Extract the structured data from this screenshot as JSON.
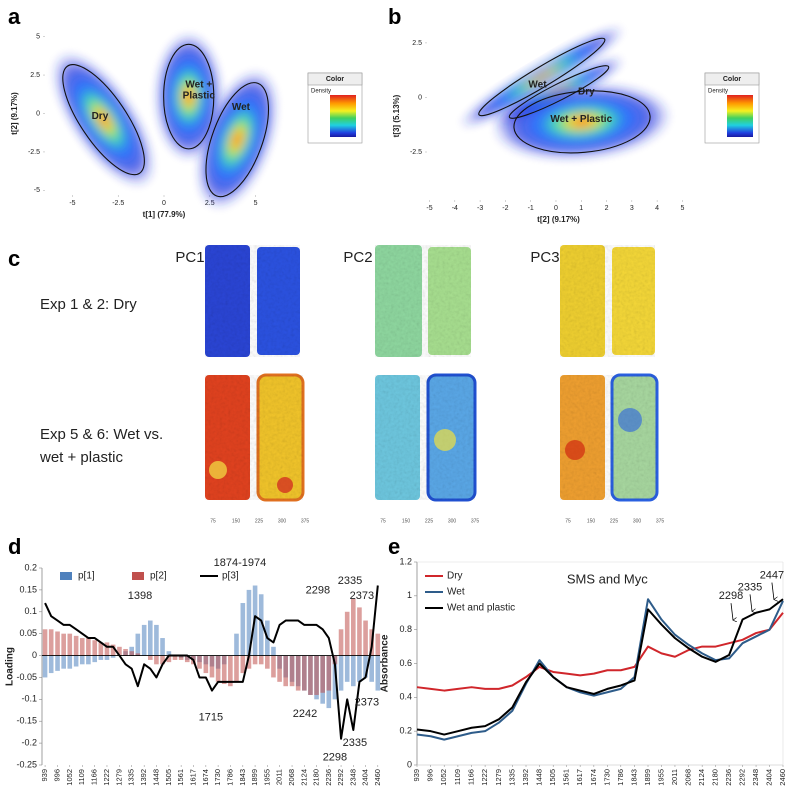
{
  "chart_data": [
    {
      "type": "scatter",
      "panel": "a",
      "xlabel": "t[1] (77.9%)",
      "ylabel": "t[2] (9.17%)",
      "xlim": [
        -6.5,
        6.5
      ],
      "ylim": [
        -5.3,
        5.3
      ],
      "xticks": [
        -5,
        -2.5,
        0,
        2.5,
        5
      ],
      "yticks": [
        -5,
        -2.5,
        0,
        2.5,
        5
      ],
      "ellipses": [
        {
          "label": [
            "Dry"
          ],
          "x": -3.3,
          "y": -0.4,
          "rx": 1.25,
          "ry": 4.2,
          "rotate": -34,
          "text_at": [
            -3.5,
            -0.2
          ]
        },
        {
          "label": [
            "Wet +",
            "Plastic"
          ],
          "x": 1.35,
          "y": 1.1,
          "rx": 1.37,
          "ry": 3.4,
          "rotate": 0,
          "text_at": [
            1.9,
            1.5
          ]
        },
        {
          "label": [
            "Wet"
          ],
          "x": 4.0,
          "y": -1.7,
          "rx": 1.37,
          "ry": 3.9,
          "rotate": 20,
          "text_at": [
            4.2,
            0.4
          ]
        }
      ],
      "colorbar": {
        "title": "Color",
        "label": "Density"
      }
    },
    {
      "type": "scatter",
      "panel": "b",
      "xlabel": "t[2] (9.17%)",
      "ylabel": "t[3] (5.13%)",
      "xlim": [
        -5.1,
        5.3
      ],
      "ylim": [
        -4.7,
        3
      ],
      "xticks": [
        -5,
        -4,
        -3,
        -2,
        -1,
        0,
        1,
        2,
        3,
        4,
        5
      ],
      "yticks": [
        -2.5,
        0,
        2.5
      ],
      "ellipses": [
        {
          "label": [
            "Wet"
          ],
          "x": -0.56,
          "y": 0.94,
          "rx": 2.9,
          "ry": 0.45,
          "rotate": -31,
          "text_at": [
            -0.73,
            0.57
          ]
        },
        {
          "label": [
            "Dry"
          ],
          "x": 0.12,
          "y": 0.25,
          "rx": 2.2,
          "ry": 0.37,
          "rotate": -27,
          "text_at": [
            1.2,
            0.25
          ]
        },
        {
          "label": [
            "Wet + Plastic"
          ],
          "x": 1.03,
          "y": -1.12,
          "rx": 2.7,
          "ry": 1.4,
          "rotate": -5,
          "text_at": [
            1.0,
            -1.0
          ]
        }
      ],
      "colorbar": {
        "title": "Color",
        "label": "Density"
      }
    },
    {
      "type": "combo",
      "panel": "d",
      "ylabel": "Loading",
      "legend": "top",
      "x": [
        939,
        967,
        996,
        1024,
        1052,
        1081,
        1109,
        1137,
        1166,
        1194,
        1222,
        1250,
        1279,
        1307,
        1335,
        1363,
        1392,
        1420,
        1448,
        1476,
        1505,
        1533,
        1561,
        1589,
        1617,
        1645,
        1674,
        1702,
        1730,
        1758,
        1786,
        1814,
        1843,
        1871,
        1899,
        1927,
        1955,
        1983,
        2011,
        2039,
        2068,
        2096,
        2124,
        2152,
        2180,
        2208,
        2236,
        2264,
        2292,
        2320,
        2348,
        2376,
        2404,
        2432,
        2460
      ],
      "xlim": [
        925,
        2470
      ],
      "ylim": [
        -0.25,
        0.2
      ],
      "xticks": [
        939,
        996,
        1052,
        1109,
        1166,
        1222,
        1279,
        1335,
        1392,
        1448,
        1505,
        1561,
        1617,
        1674,
        1730,
        1786,
        1843,
        1899,
        1955,
        2011,
        2068,
        2124,
        2180,
        2236,
        2292,
        2348,
        2404,
        2460
      ],
      "yticks": [
        -0.25,
        -0.2,
        -0.15,
        -0.1,
        -0.05,
        0,
        0.05,
        0.1,
        0.15,
        0.2
      ],
      "series": [
        {
          "name": "p[1]",
          "color": "#4f81bd",
          "style": "bar",
          "values": [
            -0.05,
            -0.04,
            -0.035,
            -0.03,
            -0.03,
            -0.025,
            -0.02,
            -0.02,
            -0.015,
            -0.01,
            -0.01,
            -0.005,
            0.0,
            0.01,
            0.02,
            0.05,
            0.07,
            0.08,
            0.07,
            0.04,
            0.01,
            0.0,
            -0.005,
            -0.01,
            -0.01,
            -0.015,
            -0.02,
            -0.025,
            -0.03,
            -0.02,
            0.0,
            0.05,
            0.12,
            0.15,
            0.16,
            0.14,
            0.08,
            0.02,
            -0.03,
            -0.05,
            -0.06,
            -0.07,
            -0.08,
            -0.09,
            -0.1,
            -0.11,
            -0.12,
            -0.1,
            -0.08,
            -0.06,
            -0.07,
            -0.06,
            -0.05,
            -0.06,
            -0.08
          ]
        },
        {
          "name": "p[2]",
          "color": "#c0504d",
          "style": "bar",
          "values": [
            0.06,
            0.06,
            0.055,
            0.05,
            0.05,
            0.045,
            0.04,
            0.04,
            0.035,
            0.03,
            0.03,
            0.025,
            0.02,
            0.015,
            0.01,
            0.005,
            0.0,
            -0.01,
            -0.02,
            -0.02,
            -0.015,
            -0.01,
            -0.01,
            -0.015,
            -0.02,
            -0.03,
            -0.04,
            -0.05,
            -0.06,
            -0.065,
            -0.07,
            -0.06,
            -0.04,
            -0.03,
            -0.02,
            -0.02,
            -0.03,
            -0.05,
            -0.06,
            -0.07,
            -0.07,
            -0.08,
            -0.08,
            -0.09,
            -0.09,
            -0.085,
            -0.08,
            -0.02,
            0.06,
            0.1,
            0.13,
            0.11,
            0.08,
            0.06,
            0.05
          ]
        },
        {
          "name": "p[3]",
          "color": "#000000",
          "style": "line",
          "values": [
            0.12,
            0.09,
            0.08,
            0.07,
            0.07,
            0.06,
            0.05,
            0.04,
            0.04,
            0.03,
            0.02,
            0.02,
            0.0,
            -0.02,
            -0.03,
            -0.07,
            -0.02,
            -0.03,
            -0.05,
            -0.02,
            0.0,
            0.0,
            0.0,
            0.0,
            -0.01,
            -0.05,
            -0.05,
            -0.08,
            -0.06,
            -0.06,
            -0.06,
            -0.06,
            -0.06,
            0.0,
            0.09,
            0.08,
            0.04,
            0.03,
            0.07,
            0.08,
            0.08,
            0.08,
            0.07,
            0.07,
            0.07,
            0.06,
            0.04,
            -0.02,
            -0.19,
            -0.1,
            -0.17,
            -0.06,
            -0.05,
            0.02,
            0.16
          ]
        }
      ],
      "annotations": [
        {
          "text": "1398",
          "x": 1373,
          "y": 0.136,
          "color": "#4a7ebb"
        },
        {
          "text": "1874-1974",
          "x": 1830,
          "y": 0.211,
          "color": "#4a7ebb"
        },
        {
          "text": "2298",
          "x": 2186,
          "y": 0.148,
          "color": "#c0504d"
        },
        {
          "text": "2335",
          "x": 2333,
          "y": 0.17,
          "color": "#c0504d"
        },
        {
          "text": "2373",
          "x": 2387,
          "y": 0.136,
          "color": "#c0504d"
        },
        {
          "text": "1715",
          "x": 1697,
          "y": -0.142,
          "color": "#000000"
        },
        {
          "text": "2242",
          "x": 2127,
          "y": -0.134,
          "color": "#4a7ebb"
        },
        {
          "text": "2373",
          "x": 2410,
          "y": -0.107,
          "color": "#000000"
        },
        {
          "text": "2298",
          "x": 2264,
          "y": -0.233,
          "color": "#000000"
        },
        {
          "text": "2335",
          "x": 2355,
          "y": -0.2,
          "color": "#000000"
        }
      ]
    },
    {
      "type": "line",
      "panel": "e",
      "title": "SMS and Myc",
      "ylabel": "Absorbance",
      "legend": "upper left",
      "x": [
        939,
        996,
        1052,
        1109,
        1166,
        1222,
        1279,
        1335,
        1392,
        1448,
        1505,
        1561,
        1617,
        1674,
        1730,
        1786,
        1843,
        1899,
        1955,
        2011,
        2068,
        2124,
        2180,
        2236,
        2292,
        2348,
        2404,
        2460
      ],
      "xlim": [
        939,
        2460
      ],
      "ylim": [
        0,
        1.2
      ],
      "xticks": [
        939,
        996,
        1052,
        1109,
        1166,
        1222,
        1279,
        1335,
        1392,
        1448,
        1505,
        1561,
        1617,
        1674,
        1730,
        1786,
        1843,
        1899,
        1955,
        2011,
        2068,
        2124,
        2180,
        2236,
        2292,
        2348,
        2404,
        2460
      ],
      "yticks": [
        0,
        0.2,
        0.4,
        0.6,
        0.8,
        1,
        1.2
      ],
      "series": [
        {
          "name": "Dry",
          "color": "#d0262b",
          "style": "line",
          "values": [
            0.46,
            0.45,
            0.44,
            0.45,
            0.46,
            0.45,
            0.45,
            0.47,
            0.52,
            0.58,
            0.55,
            0.54,
            0.53,
            0.54,
            0.56,
            0.56,
            0.58,
            0.7,
            0.66,
            0.64,
            0.68,
            0.7,
            0.7,
            0.72,
            0.74,
            0.78,
            0.8,
            0.9
          ]
        },
        {
          "name": "Wet",
          "color": "#2e5c8a",
          "style": "line",
          "values": [
            0.18,
            0.17,
            0.15,
            0.17,
            0.19,
            0.2,
            0.25,
            0.32,
            0.48,
            0.62,
            0.52,
            0.46,
            0.43,
            0.41,
            0.43,
            0.45,
            0.52,
            0.98,
            0.86,
            0.77,
            0.71,
            0.66,
            0.62,
            0.63,
            0.72,
            0.76,
            0.8,
            0.97
          ]
        },
        {
          "name": "Wet and plastic",
          "color": "#000000",
          "style": "line",
          "values": [
            0.21,
            0.2,
            0.18,
            0.2,
            0.22,
            0.23,
            0.27,
            0.34,
            0.49,
            0.6,
            0.52,
            0.46,
            0.44,
            0.42,
            0.45,
            0.47,
            0.5,
            0.92,
            0.83,
            0.75,
            0.69,
            0.64,
            0.61,
            0.65,
            0.86,
            0.9,
            0.92,
            0.98
          ]
        }
      ],
      "annotations": [
        {
          "text": "2298",
          "x": 2244,
          "y": 0.998,
          "color": "#000000",
          "arrow": true
        },
        {
          "text": "2335",
          "x": 2323,
          "y": 1.05,
          "color": "#000000",
          "arrow": true
        },
        {
          "text": "2447",
          "x": 2414,
          "y": 1.12,
          "color": "#000000",
          "arrow": true
        }
      ]
    }
  ],
  "panel_c": {
    "panel": "c",
    "columns": [
      "PC1",
      "PC2",
      "PC3"
    ],
    "rows": [
      [
        "Exp 1 & 2: Dry"
      ],
      [
        "Exp 5 & 6: Wet vs.",
        "wet + plastic"
      ]
    ],
    "scale_ticks": [
      75,
      150,
      225,
      300,
      375
    ]
  }
}
